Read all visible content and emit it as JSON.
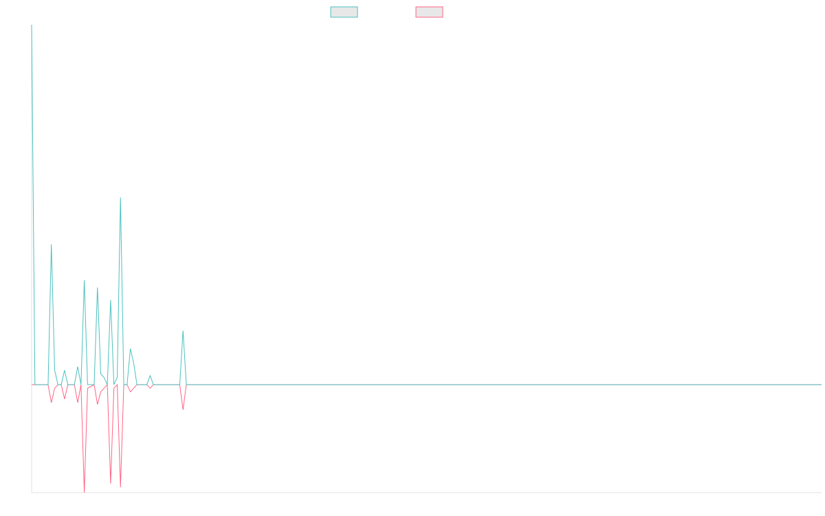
{
  "chart_data": {
    "type": "line",
    "x": [
      0,
      1,
      3,
      5,
      6,
      7,
      8,
      9,
      10,
      11,
      13,
      14,
      15,
      16,
      17,
      19,
      20,
      21,
      22,
      23,
      24,
      25,
      26,
      27,
      28,
      29,
      30,
      31,
      32,
      35,
      36,
      37,
      45,
      46,
      47,
      240
    ],
    "xlim": [
      0,
      240
    ],
    "ylim": [
      -0.3,
      1
    ],
    "legend": "top",
    "series": [
      {
        "color": "#4bc0c0",
        "values": [
          1,
          0,
          0,
          0,
          0.39,
          0.04,
          0,
          0,
          0.04,
          0,
          0,
          0.05,
          0,
          0.29,
          0,
          0,
          0.27,
          0.03,
          0.02,
          0,
          0.235,
          0,
          0.02,
          0.52,
          0,
          0,
          0.1,
          0.06,
          0,
          0,
          0.025,
          0,
          0,
          0.15,
          0,
          0
        ]
      },
      {
        "color": "#ff6384",
        "values": [
          0,
          0,
          0,
          0,
          -0.05,
          -0.01,
          0,
          0,
          -0.04,
          0,
          0,
          -0.05,
          0,
          -0.3,
          -0.01,
          0,
          -0.055,
          -0.02,
          -0.01,
          0,
          -0.275,
          -0.01,
          0,
          -0.285,
          0,
          0,
          -0.02,
          -0.01,
          0,
          0,
          -0.01,
          0,
          0,
          -0.07,
          0,
          0
        ]
      }
    ]
  }
}
